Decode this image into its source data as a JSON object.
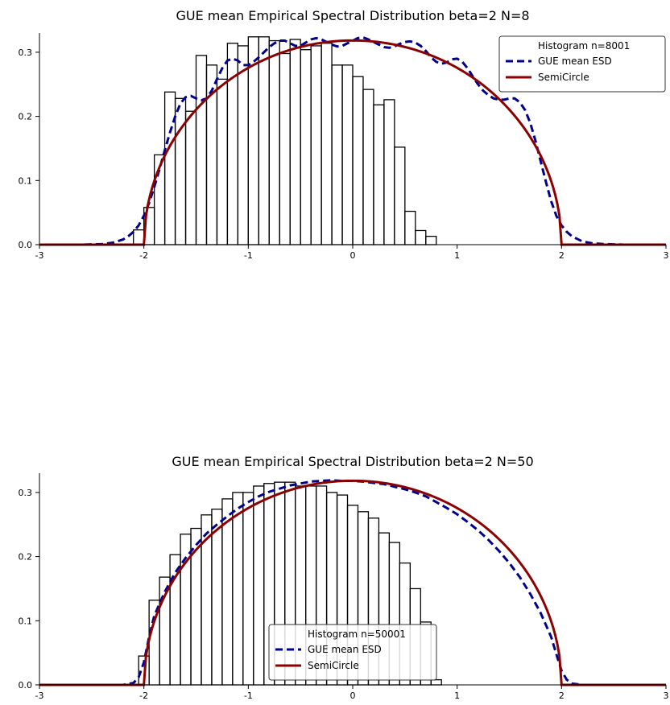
{
  "chart_data": [
    {
      "type": "bar",
      "title": "GUE mean Empirical Spectral Distribution beta=2 N=8",
      "xlabel": "",
      "ylabel": "",
      "xlim": [
        -3,
        3
      ],
      "ylim": [
        0,
        0.33
      ],
      "xticks": [
        "-3",
        "-2",
        "-1",
        "0",
        "1",
        "2",
        "3"
      ],
      "yticks": [
        "0.0",
        "0.1",
        "0.2",
        "0.3"
      ],
      "legend": {
        "location": "upper-right",
        "entries": [
          "Histogram n=8001",
          "GUE mean ESD",
          "SemiCircle"
        ]
      },
      "histogram": {
        "name": "Histogram n=8001",
        "bin_start": -2.1,
        "bin_width": 0.1,
        "values": [
          0.023,
          0.058,
          0.14,
          0.238,
          0.228,
          0.208,
          0.295,
          0.28,
          0.258,
          0.314,
          0.31,
          0.324,
          0.324,
          0.318,
          0.298,
          0.32,
          0.304,
          0.31,
          0.314,
          0.28,
          0.28,
          0.262,
          0.242,
          0.218,
          0.226,
          0.152,
          0.052,
          0.022,
          0.013
        ]
      },
      "esd": {
        "name": "GUE mean ESD",
        "x": [
          -2.6,
          -2.4,
          -2.3,
          -2.2,
          -2.15,
          -2.1,
          -2.05,
          -2.0,
          -1.95,
          -1.9,
          -1.85,
          -1.8,
          -1.75,
          -1.7,
          -1.65,
          -1.6,
          -1.55,
          -1.5,
          -1.45,
          -1.4,
          -1.35,
          -1.3,
          -1.25,
          -1.2,
          -1.15,
          -1.1,
          -1.05,
          -1.0,
          -0.95,
          -0.9,
          -0.85,
          -0.8,
          -0.75,
          -0.7,
          -0.65,
          -0.6,
          -0.55,
          -0.5,
          -0.45,
          -0.4,
          -0.35,
          -0.3,
          -0.25,
          -0.2,
          -0.15,
          -0.1,
          -0.05,
          0.0,
          0.05,
          0.1,
          0.15,
          0.2,
          0.25,
          0.3,
          0.35,
          0.4,
          0.45,
          0.5,
          0.55,
          0.6,
          0.65,
          0.7,
          0.75,
          0.8,
          0.85,
          0.9,
          0.95,
          1.0,
          1.05,
          1.1,
          1.15,
          1.2,
          1.25,
          1.3,
          1.35,
          1.4,
          1.45,
          1.5,
          1.55,
          1.6,
          1.65,
          1.7,
          1.75,
          1.8,
          1.85,
          1.9,
          1.95,
          2.0,
          2.05,
          2.1,
          2.15,
          2.2,
          2.3,
          2.4,
          2.6
        ],
        "y": [
          0.0,
          0.001,
          0.003,
          0.008,
          0.013,
          0.02,
          0.03,
          0.045,
          0.065,
          0.09,
          0.118,
          0.147,
          0.175,
          0.2,
          0.22,
          0.23,
          0.232,
          0.228,
          0.225,
          0.228,
          0.24,
          0.258,
          0.275,
          0.287,
          0.29,
          0.287,
          0.28,
          0.28,
          0.285,
          0.292,
          0.3,
          0.308,
          0.314,
          0.318,
          0.318,
          0.314,
          0.31,
          0.31,
          0.315,
          0.32,
          0.322,
          0.32,
          0.316,
          0.312,
          0.309,
          0.31,
          0.314,
          0.318,
          0.322,
          0.323,
          0.32,
          0.316,
          0.312,
          0.308,
          0.307,
          0.309,
          0.313,
          0.316,
          0.317,
          0.315,
          0.31,
          0.302,
          0.292,
          0.285,
          0.282,
          0.284,
          0.289,
          0.29,
          0.285,
          0.275,
          0.262,
          0.25,
          0.24,
          0.233,
          0.228,
          0.226,
          0.226,
          0.228,
          0.228,
          0.222,
          0.21,
          0.19,
          0.162,
          0.13,
          0.098,
          0.068,
          0.045,
          0.03,
          0.02,
          0.013,
          0.009,
          0.005,
          0.002,
          0.001,
          0.0
        ]
      },
      "semicircle": {
        "name": "SemiCircle",
        "radius": 2,
        "x_range": [
          -3,
          3
        ]
      },
      "colors": {
        "histogram_edge": "#000000",
        "esd": "#00008b",
        "semicircle": "#8b0000",
        "axis": "#000000"
      }
    },
    {
      "type": "bar",
      "title": "GUE mean Empirical Spectral Distribution beta=2 N=50",
      "xlabel": "",
      "ylabel": "",
      "xlim": [
        -3,
        3
      ],
      "ylim": [
        0,
        0.33
      ],
      "xticks": [
        "-3",
        "-2",
        "-1",
        "0",
        "1",
        "2",
        "3"
      ],
      "yticks": [
        "0.0",
        "0.1",
        "0.2",
        "0.3"
      ],
      "legend": {
        "location": "lower-center",
        "entries": [
          "Histogram n=50001",
          "GUE mean ESD",
          "SemiCircle"
        ]
      },
      "histogram": {
        "name": "Histogram n=50001",
        "bin_start": -2.05,
        "bin_width": 0.1,
        "values": [
          0.045,
          0.132,
          0.168,
          0.203,
          0.235,
          0.244,
          0.265,
          0.274,
          0.29,
          0.3,
          0.3,
          0.31,
          0.314,
          0.316,
          0.316,
          0.31,
          0.31,
          0.31,
          0.3,
          0.296,
          0.28,
          0.27,
          0.26,
          0.237,
          0.222,
          0.19,
          0.15,
          0.098,
          0.008
        ]
      },
      "esd": {
        "name": "GUE mean ESD",
        "x": [
          -2.2,
          -2.1,
          -2.05,
          -2.0,
          -1.95,
          -1.9,
          -1.8,
          -1.7,
          -1.6,
          -1.5,
          -1.4,
          -1.3,
          -1.2,
          -1.1,
          -1.0,
          -0.9,
          -0.8,
          -0.7,
          -0.6,
          -0.5,
          -0.4,
          -0.3,
          -0.2,
          -0.1,
          0.0,
          0.1,
          0.2,
          0.3,
          0.4,
          0.5,
          0.6,
          0.7,
          0.8,
          0.9,
          1.0,
          1.1,
          1.2,
          1.3,
          1.4,
          1.5,
          1.6,
          1.7,
          1.8,
          1.9,
          1.95,
          2.0,
          2.05,
          2.1,
          2.2
        ],
        "y": [
          0.0,
          0.003,
          0.012,
          0.035,
          0.075,
          0.108,
          0.145,
          0.175,
          0.198,
          0.218,
          0.236,
          0.25,
          0.263,
          0.275,
          0.285,
          0.294,
          0.301,
          0.306,
          0.311,
          0.314,
          0.317,
          0.318,
          0.319,
          0.318,
          0.318,
          0.317,
          0.315,
          0.313,
          0.309,
          0.305,
          0.3,
          0.294,
          0.285,
          0.276,
          0.266,
          0.254,
          0.241,
          0.226,
          0.209,
          0.19,
          0.168,
          0.142,
          0.112,
          0.075,
          0.048,
          0.022,
          0.008,
          0.002,
          0.0
        ]
      },
      "semicircle": {
        "name": "SemiCircle",
        "radius": 2,
        "x_range": [
          -3,
          3
        ]
      },
      "colors": {
        "histogram_edge": "#000000",
        "esd": "#00008b",
        "semicircle": "#8b0000",
        "axis": "#000000"
      }
    }
  ]
}
